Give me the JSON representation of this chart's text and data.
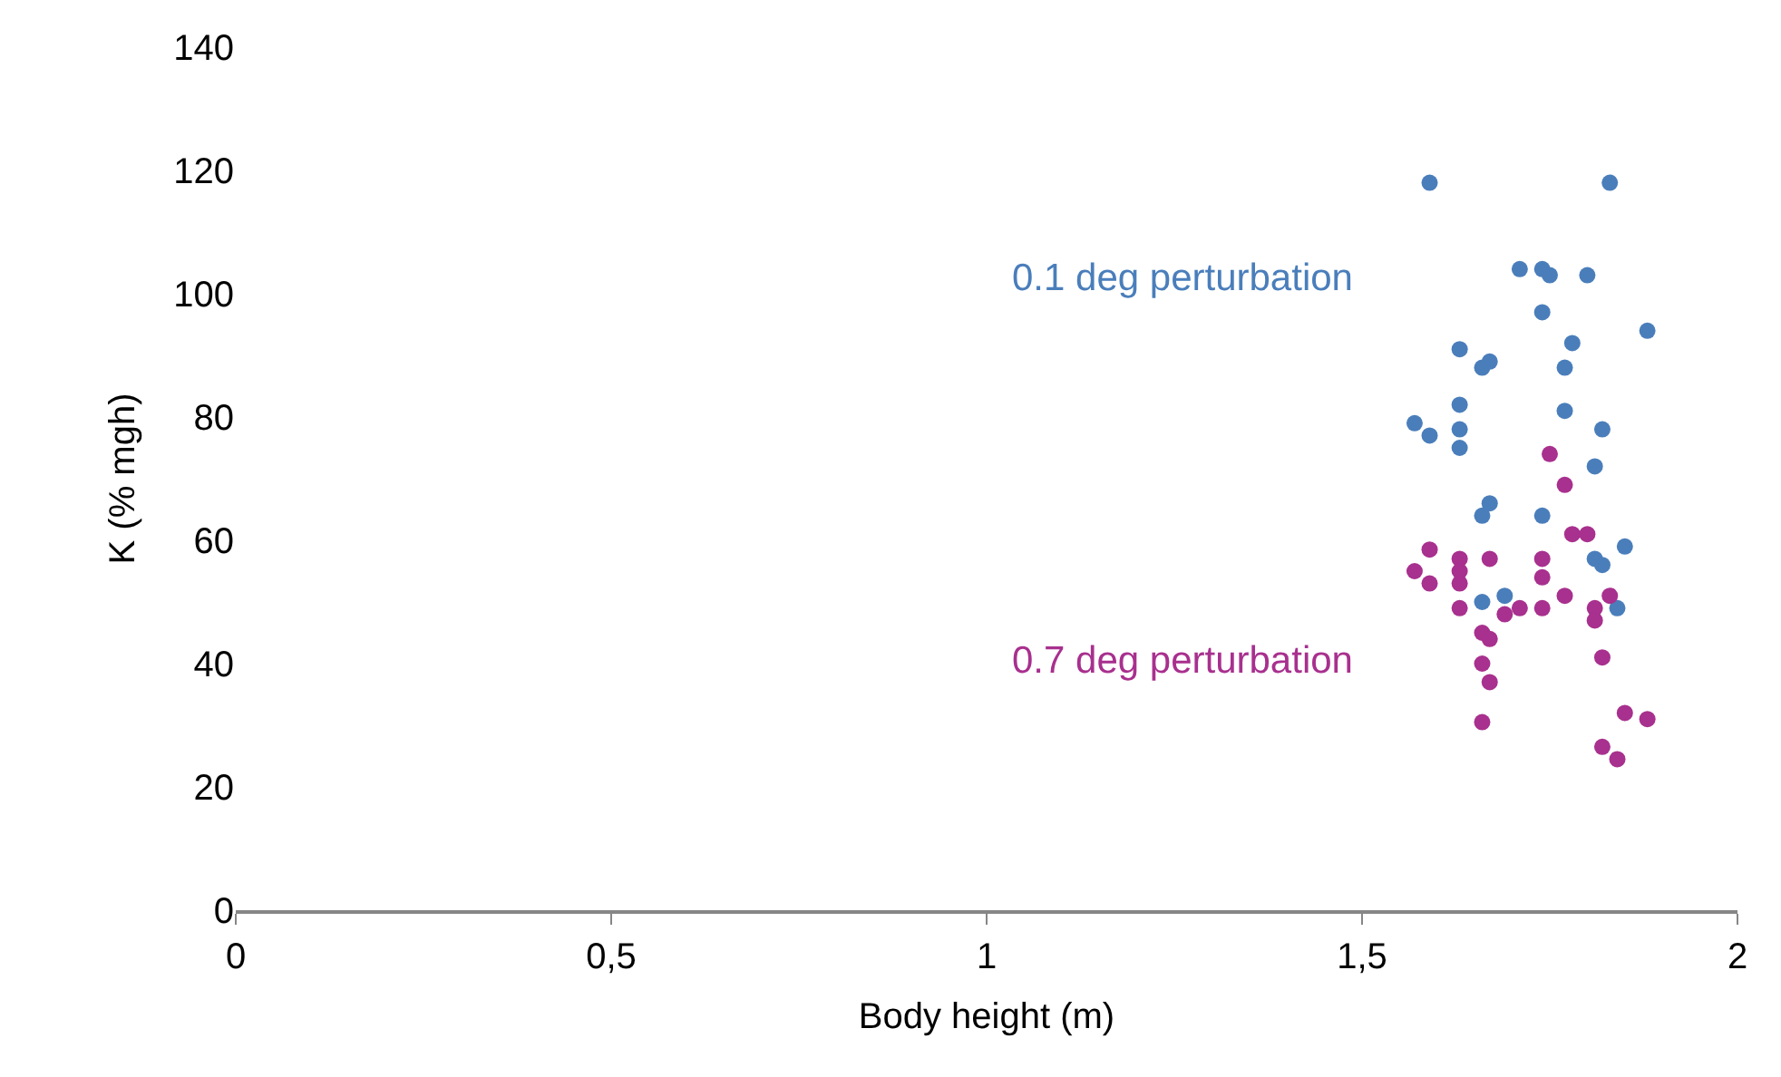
{
  "chart_data": {
    "type": "scatter",
    "xlabel": "Body height (m)",
    "ylabel": "K (% mgh)",
    "xlim": [
      0,
      2
    ],
    "xticks": [
      0,
      {
        "value": 0.5,
        "label": "0,5"
      },
      1,
      {
        "value": 1.5,
        "label": "1,5"
      },
      2
    ],
    "ylim": [
      0,
      140
    ],
    "yticks": [
      0,
      20,
      40,
      60,
      80,
      100,
      120,
      140
    ],
    "legend": false,
    "marker": "circle",
    "series": [
      {
        "name": "0.1 deg perturbation",
        "color": "#4a7ebb",
        "x": [
          1.59,
          1.83,
          1.71,
          1.74,
          1.75,
          1.8,
          1.74,
          1.88,
          1.78,
          1.63,
          1.67,
          1.66,
          1.77,
          1.63,
          1.77,
          1.57,
          1.59,
          1.63,
          1.63,
          1.82,
          1.81,
          1.67,
          1.66,
          1.74,
          1.85,
          1.81,
          1.82,
          1.66,
          1.69,
          1.84
        ],
        "values": [
          118,
          118,
          104,
          104,
          103,
          103,
          97,
          94,
          92,
          91,
          89,
          88,
          88,
          82,
          81,
          79,
          77,
          78,
          75,
          78,
          72,
          66,
          64,
          64,
          59,
          57,
          56,
          50,
          51,
          49
        ]
      },
      {
        "name": "0.7 deg perturbation",
        "color": "#a8308e",
        "x": [
          1.75,
          1.77,
          1.78,
          1.8,
          1.59,
          1.57,
          1.59,
          1.63,
          1.63,
          1.63,
          1.63,
          1.67,
          1.74,
          1.74,
          1.77,
          1.83,
          1.81,
          1.81,
          1.69,
          1.71,
          1.74,
          1.66,
          1.67,
          1.82,
          1.66,
          1.67,
          1.85,
          1.88,
          1.66,
          1.82,
          1.84
        ],
        "values": [
          74,
          69,
          61,
          61,
          58.5,
          55,
          53,
          57,
          55,
          53,
          49,
          57,
          57,
          54,
          51,
          51,
          49,
          47,
          48,
          49,
          49,
          45,
          44,
          41,
          40,
          37,
          32,
          31,
          30.5,
          26.5,
          24.5
        ]
      }
    ]
  }
}
